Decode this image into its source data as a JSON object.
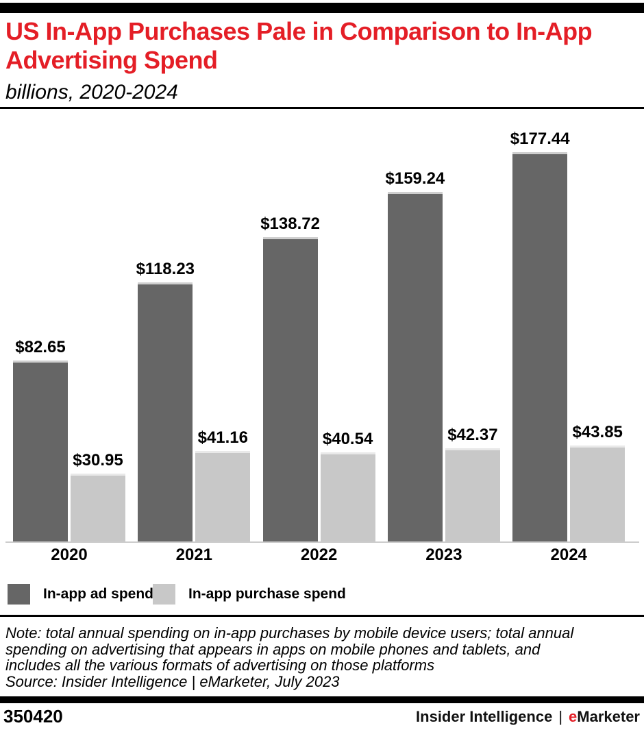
{
  "header": {
    "title_line1": "US In-App Purchases Pale in Comparison to In-App",
    "title_line2": "Advertising Spend",
    "subtitle": "billions, 2020-2024",
    "title_color": "#e41e26"
  },
  "chart_data": {
    "type": "bar",
    "title": "US In-App Purchases Pale in Comparison to In-App Advertising Spend",
    "subtitle": "billions, 2020-2024",
    "unit": "billions of US dollars",
    "categories": [
      "2020",
      "2021",
      "2022",
      "2023",
      "2024"
    ],
    "series": [
      {
        "name": "In-app ad spend",
        "color": "#666666",
        "values": [
          82.65,
          118.23,
          138.72,
          159.24,
          177.44
        ],
        "labels": [
          "$82.65",
          "$118.23",
          "$138.72",
          "$159.24",
          "$177.44"
        ]
      },
      {
        "name": "In-app purchase spend",
        "color": "#c8c8c8",
        "values": [
          30.95,
          41.16,
          40.54,
          42.37,
          43.85
        ],
        "labels": [
          "$30.95",
          "$41.16",
          "$40.54",
          "$42.37",
          "$43.85"
        ]
      }
    ],
    "value_prefix": "$",
    "ylim": [
      0,
      190
    ],
    "grid": false,
    "axis_color": "#cccccc",
    "legend_position": "bottom"
  },
  "note": {
    "lines": [
      "Note: total annual spending on in-app purchases by mobile device users; total annual",
      "spending on advertising that appears in apps on mobile phones and tablets, and",
      "includes all the various formats of advertising on those platforms",
      "Source: Insider Intelligence | eMarketer, July 2023"
    ]
  },
  "footer": {
    "chart_id": "350420",
    "brand_left": "Insider Intelligence",
    "separator": "|",
    "brand_e": "e",
    "brand_rest": "Marketer",
    "accent_color": "#e41e26"
  }
}
